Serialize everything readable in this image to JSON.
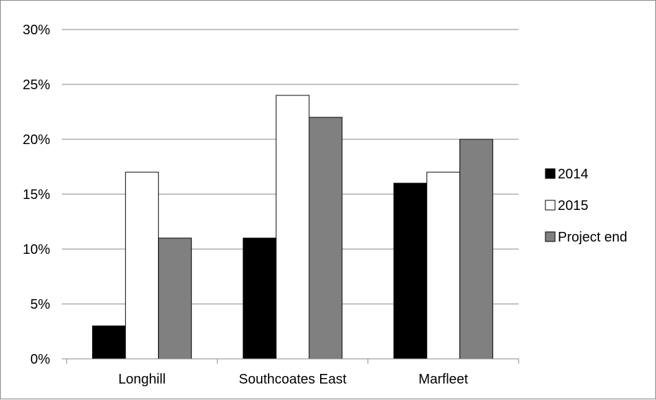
{
  "chart_data": {
    "type": "bar",
    "title": "",
    "xlabel": "",
    "ylabel": "",
    "categories": [
      "Longhill",
      "Southcoates East",
      "Marfleet"
    ],
    "series": [
      {
        "name": "2014",
        "values": [
          3,
          11,
          16
        ],
        "color": "#000000"
      },
      {
        "name": "2015",
        "values": [
          17,
          24,
          17
        ],
        "color": "#ffffff"
      },
      {
        "name": "Project end",
        "values": [
          11,
          22,
          20
        ],
        "color": "#808080"
      }
    ],
    "ylim": [
      0,
      30
    ],
    "y_ticks": [
      {
        "value": 0,
        "label": "0%"
      },
      {
        "value": 5,
        "label": "5%"
      },
      {
        "value": 10,
        "label": "10%"
      },
      {
        "value": 15,
        "label": "15%"
      },
      {
        "value": 20,
        "label": "20%"
      },
      {
        "value": 25,
        "label": "25%"
      },
      {
        "value": 30,
        "label": "30%"
      }
    ],
    "grid": true,
    "legend_position": "right"
  }
}
